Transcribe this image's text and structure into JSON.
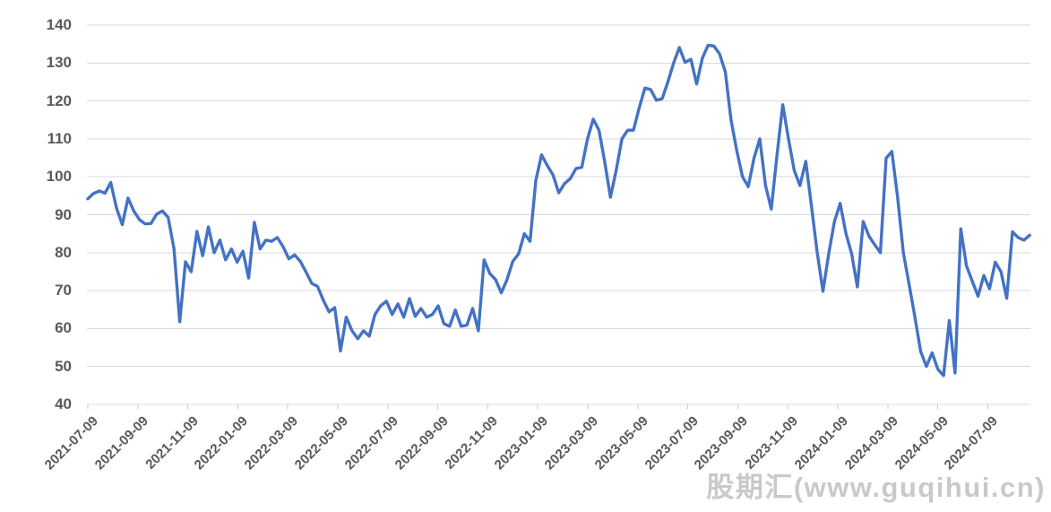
{
  "page": {
    "background": "#ffffff"
  },
  "watermark": {
    "text": "股期汇(www.guqihui.cn)"
  },
  "chart_data": {
    "type": "line",
    "title": "",
    "legend": "none",
    "grid": "horizontal",
    "series_name": "weekly-price-index",
    "line_color": "#4472C4",
    "axis_label_color": "#595959",
    "gridline_color": "#D9D9D9",
    "tick_color": "#C9C9C9",
    "ylim": [
      40,
      140
    ],
    "y_ticks": [
      40,
      50,
      60,
      70,
      80,
      90,
      100,
      110,
      120,
      130,
      140
    ],
    "x_start_date": "2021-07-09",
    "x_step_days": 7,
    "x_tick_interval": "2 months",
    "x_tick_labels": [
      "2021-07-09",
      "2021-09-09",
      "2021-11-09",
      "2022-01-09",
      "2022-03-09",
      "2022-05-09",
      "2022-07-09",
      "2022-09-09",
      "2022-11-09",
      "2023-01-09",
      "2023-03-09",
      "2023-05-09",
      "2023-07-09",
      "2023-09-09",
      "2023-11-09",
      "2024-01-09",
      "2024-03-09",
      "2024-05-09",
      "2024-07-09"
    ],
    "values": [
      94.2,
      95.6,
      96.3,
      95.7,
      98.5,
      91.7,
      87.4,
      94.4,
      91.0,
      88.7,
      87.6,
      87.7,
      90.2,
      91.0,
      89.3,
      81.0,
      61.8,
      77.6,
      75.0,
      85.6,
      79.2,
      86.8,
      80.0,
      83.3,
      78.1,
      81.0,
      77.5,
      80.4,
      73.3,
      88.0,
      81.0,
      83.3,
      83.0,
      84.0,
      81.6,
      78.4,
      79.4,
      77.7,
      74.9,
      71.9,
      71.1,
      67.5,
      64.4,
      65.5,
      54.1,
      63.0,
      59.4,
      57.3,
      59.4,
      58.0,
      63.7,
      66.0,
      67.2,
      63.7,
      66.5,
      63.0,
      67.9,
      63.2,
      65.3,
      63.0,
      63.7,
      66.0,
      61.3,
      60.6,
      64.9,
      60.6,
      60.9,
      65.3,
      59.4,
      78.1,
      74.5,
      72.9,
      69.4,
      72.9,
      77.7,
      79.7,
      85.0,
      83.0,
      99.0,
      105.8,
      103.0,
      100.5,
      95.8,
      98.2,
      99.5,
      102.2,
      102.5,
      110.0,
      115.2,
      112.3,
      104.0,
      94.6,
      101.7,
      110.0,
      112.3,
      112.3,
      118.2,
      123.4,
      123.0,
      120.2,
      120.6,
      125.0,
      130.0,
      134.1,
      130.2,
      131.0,
      124.5,
      131.3,
      134.7,
      134.5,
      132.4,
      127.7,
      115.0,
      106.9,
      100.0,
      97.4,
      105.0,
      110.0,
      97.7,
      91.5,
      105.7,
      119.0,
      110.0,
      101.7,
      97.7,
      104.1,
      92.2,
      80.0,
      69.8,
      79.7,
      88.2,
      93.0,
      85.1,
      79.7,
      71.0,
      88.2,
      84.4,
      82.1,
      80.0,
      104.9,
      106.7,
      94.6,
      80.0,
      71.7,
      63.2,
      54.0,
      50.0,
      53.6,
      49.3,
      47.6,
      62.1,
      48.3,
      86.3,
      76.5,
      72.5,
      68.5,
      74.0,
      70.5,
      77.5,
      75.0,
      68.0,
      85.5,
      84.0,
      83.3,
      84.6
    ]
  }
}
